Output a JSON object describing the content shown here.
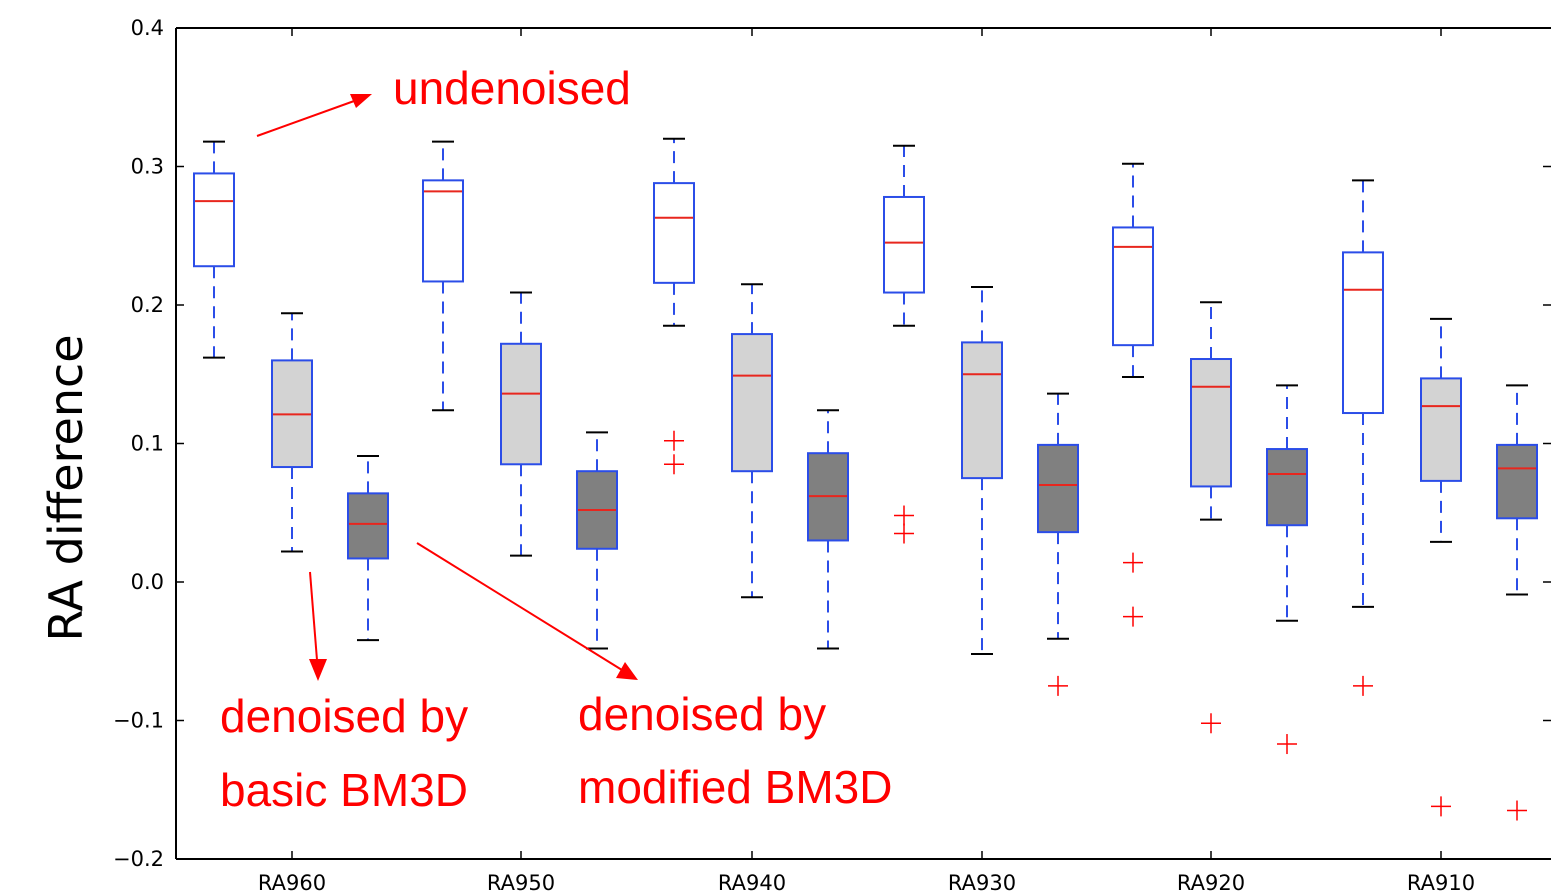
{
  "chart_data": {
    "type": "boxplot",
    "ylabel": "RA difference",
    "ylim": [
      -0.2,
      0.4
    ],
    "yticks": [
      -0.2,
      -0.1,
      0.0,
      0.1,
      0.2,
      0.3,
      0.4
    ],
    "ytick_labels": [
      "−0.2",
      "−0.1",
      "0.0",
      "0.1",
      "0.2",
      "0.3",
      "0.4"
    ],
    "categories": [
      "RA960",
      "RA950",
      "RA940",
      "RA930",
      "RA920",
      "RA910"
    ],
    "series": [
      {
        "key": "undenoised",
        "fill": "#ffffff",
        "boxes": [
          {
            "whislo": 0.162,
            "q1": 0.228,
            "med": 0.275,
            "q3": 0.295,
            "whishi": 0.318,
            "fliers": []
          },
          {
            "whislo": 0.124,
            "q1": 0.217,
            "med": 0.282,
            "q3": 0.29,
            "whishi": 0.318,
            "fliers": []
          },
          {
            "whislo": 0.185,
            "q1": 0.216,
            "med": 0.263,
            "q3": 0.288,
            "whishi": 0.32,
            "fliers": [
              0.102,
              0.085
            ]
          },
          {
            "whislo": 0.185,
            "q1": 0.209,
            "med": 0.245,
            "q3": 0.278,
            "whishi": 0.315,
            "fliers": [
              0.048,
              0.035
            ]
          },
          {
            "whislo": 0.148,
            "q1": 0.171,
            "med": 0.242,
            "q3": 0.256,
            "whishi": 0.302,
            "fliers": [
              0.014,
              -0.025
            ]
          },
          {
            "whislo": -0.018,
            "q1": 0.122,
            "med": 0.211,
            "q3": 0.238,
            "whishi": 0.29,
            "fliers": [
              -0.075
            ]
          }
        ]
      },
      {
        "key": "basic",
        "fill": "#d3d3d3",
        "boxes": [
          {
            "whislo": 0.022,
            "q1": 0.083,
            "med": 0.121,
            "q3": 0.16,
            "whishi": 0.194,
            "fliers": []
          },
          {
            "whislo": 0.019,
            "q1": 0.085,
            "med": 0.136,
            "q3": 0.172,
            "whishi": 0.209,
            "fliers": []
          },
          {
            "whislo": -0.011,
            "q1": 0.08,
            "med": 0.149,
            "q3": 0.179,
            "whishi": 0.215,
            "fliers": []
          },
          {
            "whislo": -0.052,
            "q1": 0.075,
            "med": 0.15,
            "q3": 0.173,
            "whishi": 0.213,
            "fliers": []
          },
          {
            "whislo": 0.045,
            "q1": 0.069,
            "med": 0.141,
            "q3": 0.161,
            "whishi": 0.202,
            "fliers": [
              -0.102
            ]
          },
          {
            "whislo": 0.029,
            "q1": 0.073,
            "med": 0.127,
            "q3": 0.147,
            "whishi": 0.19,
            "fliers": [
              -0.162
            ]
          }
        ]
      },
      {
        "key": "modified",
        "fill": "#808080",
        "boxes": [
          {
            "whislo": -0.042,
            "q1": 0.017,
            "med": 0.042,
            "q3": 0.064,
            "whishi": 0.091,
            "fliers": []
          },
          {
            "whislo": -0.048,
            "q1": 0.024,
            "med": 0.052,
            "q3": 0.08,
            "whishi": 0.108,
            "fliers": []
          },
          {
            "whislo": -0.048,
            "q1": 0.03,
            "med": 0.062,
            "q3": 0.093,
            "whishi": 0.124,
            "fliers": []
          },
          {
            "whislo": -0.041,
            "q1": 0.036,
            "med": 0.07,
            "q3": 0.099,
            "whishi": 0.136,
            "fliers": [
              -0.075
            ]
          },
          {
            "whislo": -0.028,
            "q1": 0.041,
            "med": 0.078,
            "q3": 0.096,
            "whishi": 0.142,
            "fliers": [
              -0.117
            ]
          },
          {
            "whislo": -0.009,
            "q1": 0.046,
            "med": 0.082,
            "q3": 0.099,
            "whishi": 0.142,
            "fliers": [
              -0.165
            ]
          }
        ]
      }
    ],
    "annotations": [
      {
        "lines": [
          "undenoised"
        ]
      },
      {
        "lines": [
          "denoised by",
          "basic BM3D"
        ]
      },
      {
        "lines": [
          "denoised by",
          "modified BM3D"
        ]
      }
    ],
    "colors": {
      "box_edge": "#2b4de8",
      "median": "#e8261e",
      "flier": "#ff0000",
      "cap": "#000000",
      "annotation": "#ff0000"
    }
  }
}
